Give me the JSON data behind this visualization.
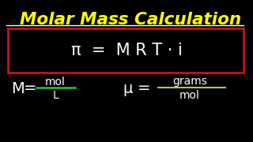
{
  "background_color": "#000000",
  "title": "Molar Mass Calculation",
  "title_color": "#ffff00",
  "title_fontsize": 15.5,
  "formula_box_color": "#cc1111",
  "formula_text": "π  =  M R T · i",
  "formula_color": "#ffffff",
  "formula_fontsize": 15,
  "left_big": "M",
  "left_eq": " = ",
  "left_numerator": "mol",
  "left_denominator": "L",
  "left_line_color": "#22cc22",
  "right_big": "μ",
  "right_eq": " = ",
  "right_numerator": "grams",
  "right_denominator": "mol",
  "right_line_color": "#aacc44",
  "equation_color": "#ffffff",
  "eq_big_fontsize": 14,
  "eq_small_fontsize": 10,
  "underline_color": "#ffffff"
}
